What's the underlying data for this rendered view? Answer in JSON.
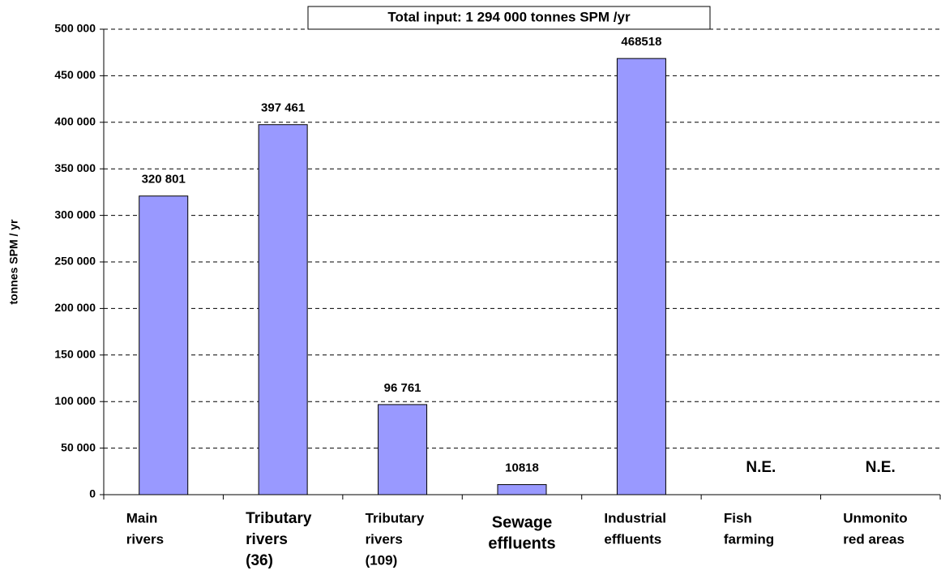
{
  "chart_data": {
    "type": "bar",
    "title": "Total input: 1 294 000 tonnes SPM /yr",
    "y_label": "tonnes SPM / yr",
    "categories": [
      [
        "Main",
        "rivers"
      ],
      [
        "Tributary",
        "rivers",
        "(36)"
      ],
      [
        "Tributary",
        "rivers",
        "(109)"
      ],
      [
        "Sewage",
        "effluents"
      ],
      [
        "Industrial",
        "effluents"
      ],
      [
        "Fish",
        "farming"
      ],
      [
        "Unmonito",
        "red areas"
      ]
    ],
    "values": [
      320801,
      397461,
      96761,
      10818,
      468518,
      null,
      null
    ],
    "value_labels": [
      "320 801",
      "397 461",
      "96 761",
      "10818",
      "468518",
      "N.E.",
      "N.E."
    ],
    "color": "#9999ff",
    "ylim": [
      0,
      500000
    ],
    "yticks": [
      0,
      {
        "value": 50000,
        "label": "50 000"
      },
      {
        "value": 100000,
        "label": "100 000"
      },
      {
        "value": 150000,
        "label": "150 000"
      },
      {
        "value": 200000,
        "label": "200 000"
      },
      {
        "value": 250000,
        "label": "250 000"
      },
      {
        "value": 300000,
        "label": "300 000"
      },
      {
        "value": 350000,
        "label": "350 000"
      },
      {
        "value": 400000,
        "label": "400 000"
      },
      {
        "value": 450000,
        "label": "450 000"
      },
      {
        "value": 500000,
        "label": "500 000"
      }
    ],
    "grid": true
  }
}
